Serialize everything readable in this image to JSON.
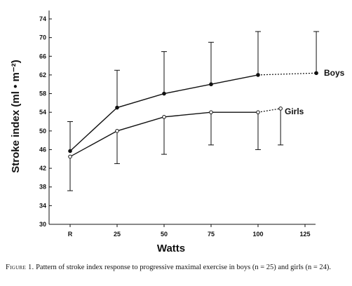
{
  "chart_data": {
    "type": "line",
    "xlabel": "Watts",
    "ylabel": "Stroke index (ml • m⁻²)",
    "categories": [
      "R",
      "25",
      "50",
      "75",
      "100",
      "125"
    ],
    "y_ticks": [
      30,
      34,
      38,
      42,
      46,
      50,
      54,
      58,
      62,
      66,
      70,
      74
    ],
    "ylim": [
      30,
      74
    ],
    "grid": false,
    "series": [
      {
        "name": "Boys",
        "points": [
          {
            "x": "R",
            "y": 45.7,
            "err_low": 45.7,
            "err_high": 52.0
          },
          {
            "x": "25",
            "y": 55.0,
            "err_low": 55.0,
            "err_high": 63.0
          },
          {
            "x": "50",
            "y": 58.0,
            "err_low": 58.0,
            "err_high": 67.0
          },
          {
            "x": "75",
            "y": 60.0,
            "err_low": 60.0,
            "err_high": 69.0
          },
          {
            "x": "100",
            "y": 62.0,
            "err_low": 62.0,
            "err_high": 71.3
          },
          {
            "x": "max",
            "y": 62.4,
            "err_low": 62.4,
            "err_high": 71.3
          }
        ]
      },
      {
        "name": "Girls",
        "points": [
          {
            "x": "R",
            "y": 44.5,
            "err_low": 37.2,
            "err_high": 44.5
          },
          {
            "x": "25",
            "y": 50.0,
            "err_low": 43.0,
            "err_high": 50.0
          },
          {
            "x": "50",
            "y": 53.0,
            "err_low": 45.0,
            "err_high": 53.0
          },
          {
            "x": "75",
            "y": 54.0,
            "err_low": 47.0,
            "err_high": 54.0
          },
          {
            "x": "100",
            "y": 54.0,
            "err_low": 46.0,
            "err_high": 54.0
          },
          {
            "x": "max",
            "y": 54.8,
            "err_low": 47.0,
            "err_high": 54.8
          }
        ]
      }
    ],
    "max_point_watts": {
      "Boys": 131,
      "Girls": 112
    },
    "series_labels": {
      "boys": "Boys",
      "girls": "Girls"
    }
  },
  "caption": {
    "figure_label": "Figure 1.",
    "text": " Pattern of stroke index response to progressive maximal exercise in boys (n = 25) and girls (n = 24)."
  }
}
